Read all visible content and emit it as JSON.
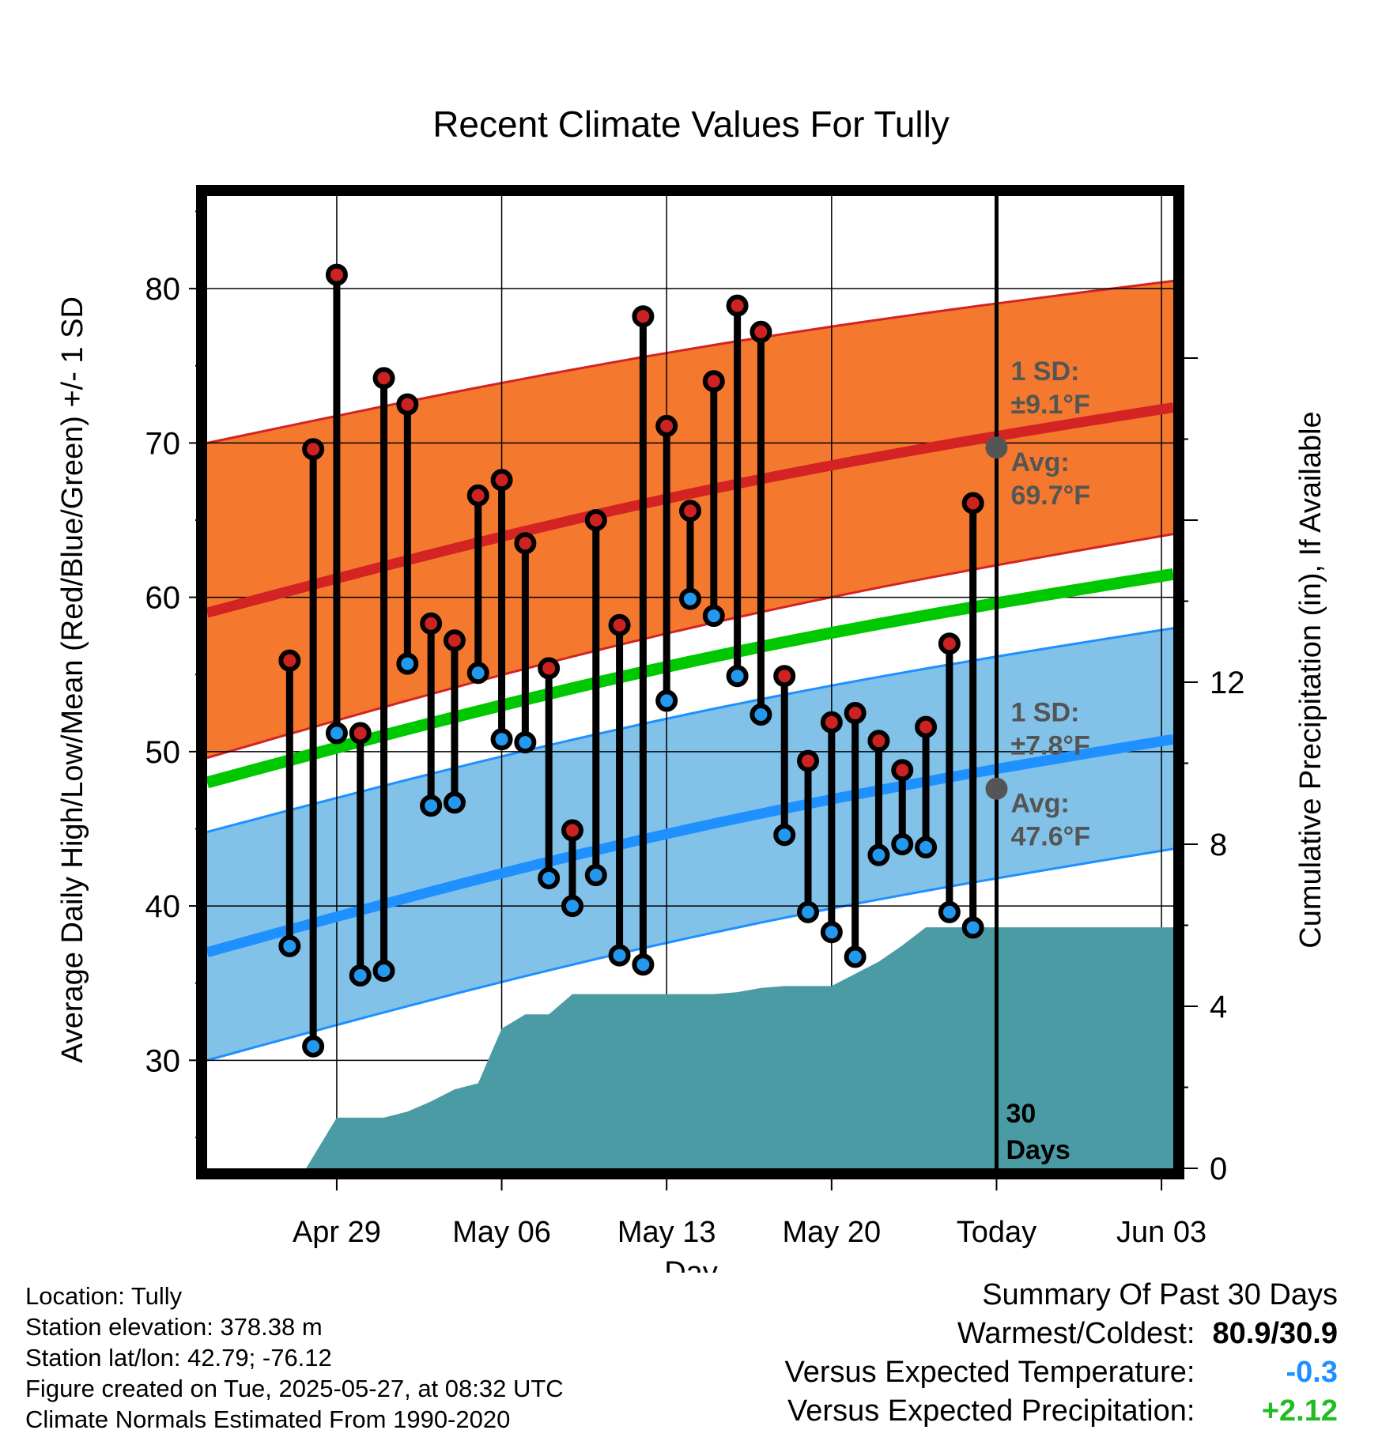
{
  "chart_data": {
    "type": "range-bar with shaded normal bands and cumulative precipitation area",
    "title": "Recent Climate Values For Tully",
    "xlabel": "Day",
    "ylabel_left": "Average Daily High/Low/Mean (Red/Blue/Green) +/- 1 SD",
    "ylabel_right": "Cumulative Precipitation (in), If Available",
    "x_ticks": [
      "Apr 29",
      "May 06",
      "May 13",
      "May 20",
      "Today",
      "Jun 03"
    ],
    "y_left_ticks": [
      30,
      40,
      50,
      60,
      70,
      80
    ],
    "y_right_ticks": [
      0,
      4,
      8,
      12
    ],
    "ylim_left": [
      23,
      86
    ],
    "ylim_right": [
      0,
      24
    ],
    "x_day_range": [
      -33.5,
      7.5
    ],
    "daily": [
      {
        "day": -30,
        "high": 55.9,
        "low": 37.4
      },
      {
        "day": -29,
        "high": 69.6,
        "low": 30.9
      },
      {
        "day": -28,
        "high": 80.9,
        "low": 51.2
      },
      {
        "day": -27,
        "high": 51.2,
        "low": 35.5
      },
      {
        "day": -26,
        "high": 74.2,
        "low": 35.8
      },
      {
        "day": -25,
        "high": 72.5,
        "low": 55.7
      },
      {
        "day": -24,
        "high": 58.3,
        "low": 46.5
      },
      {
        "day": -23,
        "high": 57.2,
        "low": 46.7
      },
      {
        "day": -22,
        "high": 66.6,
        "low": 55.1
      },
      {
        "day": -21,
        "high": 67.6,
        "low": 50.8
      },
      {
        "day": -20,
        "high": 63.5,
        "low": 50.6
      },
      {
        "day": -19,
        "high": 55.4,
        "low": 41.8
      },
      {
        "day": -18,
        "high": 44.9,
        "low": 40.0
      },
      {
        "day": -17,
        "high": 65.0,
        "low": 42.0
      },
      {
        "day": -16,
        "high": 58.2,
        "low": 36.8
      },
      {
        "day": -15,
        "high": 78.2,
        "low": 36.2
      },
      {
        "day": -14,
        "high": 71.1,
        "low": 53.3
      },
      {
        "day": -13,
        "high": 65.6,
        "low": 59.9
      },
      {
        "day": -12,
        "high": 74.0,
        "low": 58.8
      },
      {
        "day": -11,
        "high": 78.9,
        "low": 54.9
      },
      {
        "day": -10,
        "high": 77.2,
        "low": 52.4
      },
      {
        "day": -9,
        "high": 54.9,
        "low": 44.6
      },
      {
        "day": -8,
        "high": 49.4,
        "low": 39.6
      },
      {
        "day": -7,
        "high": 51.9,
        "low": 38.3
      },
      {
        "day": -6,
        "high": 52.5,
        "low": 36.7
      },
      {
        "day": -5,
        "high": 50.7,
        "low": 43.3
      },
      {
        "day": -4,
        "high": 48.8,
        "low": 44.0
      },
      {
        "day": -3,
        "high": 51.6,
        "low": 43.8
      },
      {
        "day": -2,
        "high": 57.0,
        "low": 39.6
      },
      {
        "day": -1,
        "high": 66.1,
        "low": 38.6
      }
    ],
    "normals": {
      "x": [
        -33.5,
        7.5
      ],
      "high_avg": [
        59.0,
        72.3
      ],
      "high_upper": [
        70.0,
        80.5
      ],
      "high_lower": [
        49.6,
        64.1
      ],
      "low_avg": [
        37.0,
        50.8
      ],
      "low_upper": [
        44.8,
        58.0
      ],
      "low_lower": [
        30.0,
        43.7
      ],
      "mean_avg": [
        48.0,
        61.5
      ]
    },
    "precip_cumulative": {
      "x": [
        -33.5,
        -31.7,
        -29.3,
        -28.0,
        -27.0,
        -26.0,
        -25.0,
        -24.0,
        -23.0,
        -22.0,
        -21.0,
        -20.0,
        -19.0,
        -18.0,
        -17.0,
        -16.0,
        -15.0,
        -14.0,
        -13.0,
        -12.0,
        -11.0,
        -10.0,
        -9.0,
        -8.0,
        -7.0,
        -6.0,
        -5.0,
        -4.0,
        -3.0,
        -2.0,
        -1.0,
        0.0,
        7.5
      ],
      "y": [
        0,
        0,
        0,
        1.25,
        1.25,
        1.25,
        1.4,
        1.65,
        1.95,
        2.1,
        3.45,
        3.8,
        3.8,
        4.3,
        4.3,
        4.3,
        4.3,
        4.3,
        4.3,
        4.3,
        4.35,
        4.45,
        4.5,
        4.5,
        4.5,
        4.8,
        5.1,
        5.5,
        5.95,
        5.95,
        5.95,
        5.95,
        5.95
      ]
    },
    "today_marker": {
      "label": "30\nDays",
      "day": 0
    },
    "annotations": {
      "high_sd_label": "1 SD:",
      "high_sd_value": "±9.1°F",
      "high_avg_label": "Avg:",
      "high_avg_value": "69.7°F",
      "high_avg_at_today": 69.7,
      "low_sd_label": "1 SD:",
      "low_sd_value": "±7.8°F",
      "low_avg_label": "Avg:",
      "low_avg_value": "47.6°F",
      "low_avg_at_today": 47.6,
      "days_label_1": "30",
      "days_label_2": "Days"
    },
    "colors": {
      "high_band": "#f4792f",
      "high_line": "#d42323",
      "low_band": "#82c1e8",
      "low_line": "#1e90ff",
      "mean_line": "#00c800",
      "precip": "#4a9ba3",
      "high_dot": "#cc2222",
      "low_dot": "#2299ee",
      "marker": "#555555",
      "annotation_text": "#555555"
    }
  },
  "footer": {
    "location": "Location: Tully",
    "elevation": "Station elevation: 378.38 m",
    "latlon": "Station lat/lon: 42.79; -76.12",
    "created": "Figure created on Tue, 2025-05-27, at 08:32 UTC",
    "normals": "Climate Normals Estimated From 1990-2020"
  },
  "summary": {
    "title": "Summary Of Past 30 Days",
    "warmest_coldest_label": "Warmest/Coldest:",
    "warmest_coldest_value": "80.9/30.9",
    "temp_label": "Versus Expected Temperature:",
    "temp_value": "-0.3",
    "precip_label": "Versus Expected Precipitation:",
    "precip_value": "+2.12"
  }
}
